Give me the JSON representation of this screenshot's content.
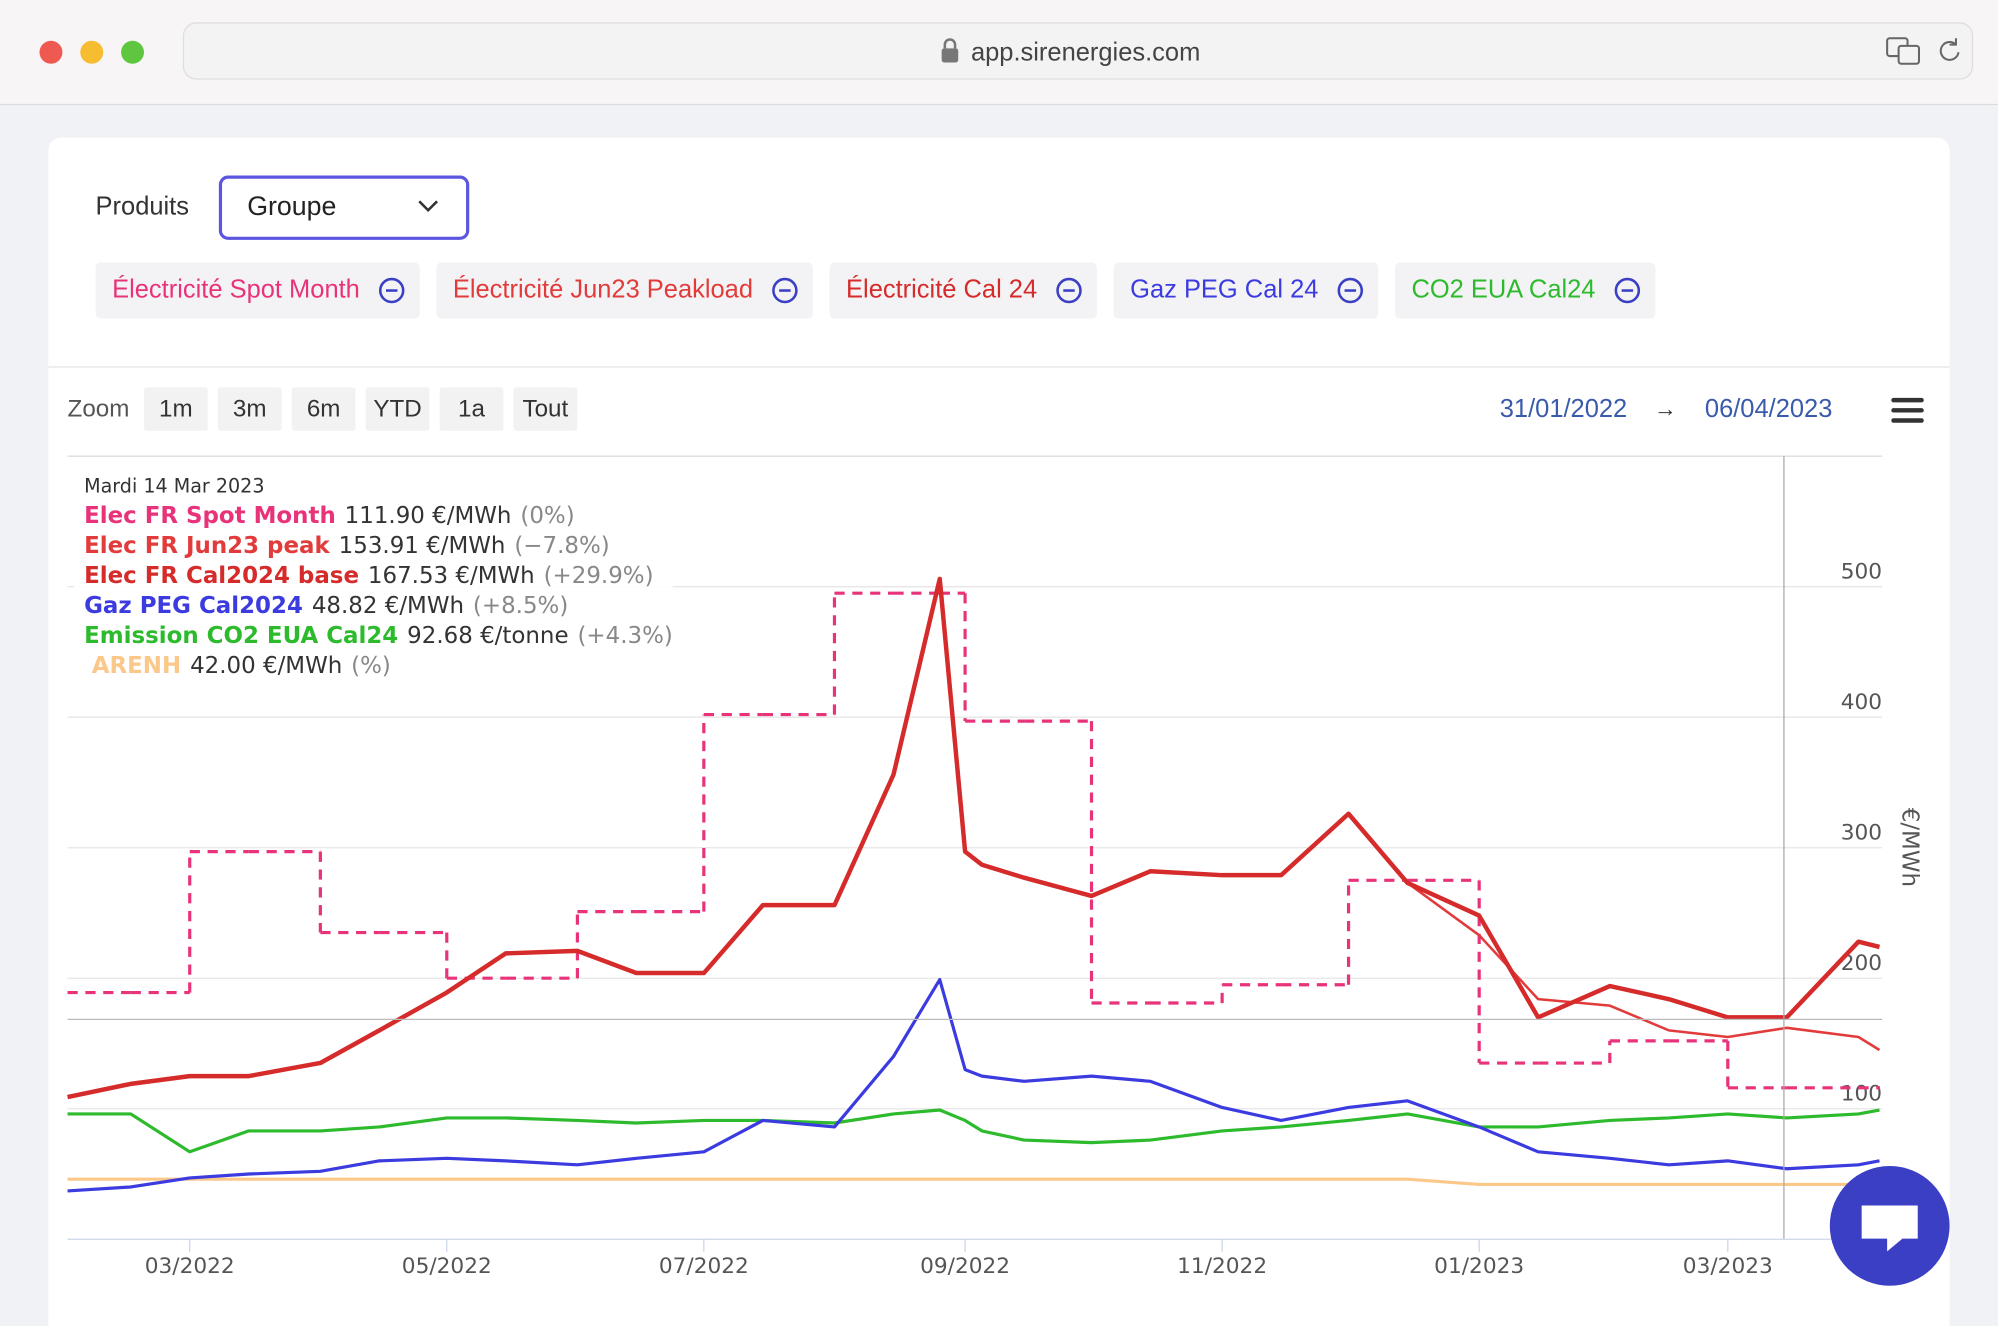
{
  "browser": {
    "url": "app.sirenergies.com"
  },
  "filters": {
    "label": "Produits",
    "select": "Groupe",
    "chips": [
      "Électricité Spot Month",
      "Électricité Jun23 Peakload",
      "Électricité Cal 24",
      "Gaz PEG Cal 24",
      "CO2 EUA Cal24"
    ]
  },
  "zoom": {
    "label": "Zoom",
    "buttons": [
      "1m",
      "3m",
      "6m",
      "YTD",
      "1a",
      "Tout"
    ],
    "from": "31/01/2022",
    "arrow": "→",
    "to": "06/04/2023"
  },
  "tooltip": {
    "date": "Mardi 14 Mar 2023",
    "values": [
      "111.90 €/MWh",
      "153.91 €/MWh",
      "167.53 €/MWh",
      "48.82 €/MWh",
      "92.68 €/tonne",
      "42.00 €/MWh"
    ],
    "changes": [
      "(0%)",
      "(−7.8%)",
      "(+29.9%)",
      "(+8.5%)",
      "(+4.3%)",
      "(%)"
    ]
  },
  "chart_data": {
    "type": "line",
    "y_label": "€/MWh",
    "x": [
      "2022-01-31",
      "2022-02-15",
      "2022-03-01",
      "2022-03-15",
      "2022-04-01",
      "2022-04-15",
      "2022-05-01",
      "2022-05-15",
      "2022-06-01",
      "2022-06-15",
      "2022-07-01",
      "2022-07-15",
      "2022-08-01",
      "2022-08-15",
      "2022-08-26",
      "2022-09-01",
      "2022-09-05",
      "2022-09-15",
      "2022-10-01",
      "2022-10-15",
      "2022-11-01",
      "2022-11-15",
      "2022-12-01",
      "2022-12-15",
      "2023-01-01",
      "2023-01-15",
      "2023-02-01",
      "2023-02-15",
      "2023-03-01",
      "2023-03-15",
      "2023-04-01",
      "2023-04-06"
    ],
    "xlim": [
      "2022-01-31",
      "2023-04-06"
    ],
    "xticks": [
      {
        "value": "2022-03-01",
        "label": "03/2022"
      },
      {
        "value": "2022-05-01",
        "label": "05/2022"
      },
      {
        "value": "2022-07-01",
        "label": "07/2022"
      },
      {
        "value": "2022-09-01",
        "label": "09/2022"
      },
      {
        "value": "2022-11-01",
        "label": "11/2022"
      },
      {
        "value": "2023-01-01",
        "label": "01/2023"
      },
      {
        "value": "2023-03-01",
        "label": "03/2023"
      }
    ],
    "ylim": [
      0,
      600
    ],
    "yticks": [
      100,
      200,
      300,
      400,
      500
    ],
    "grid": true,
    "series": [
      {
        "name": "Elec FR Spot Month",
        "color": "#e8337a",
        "step": true,
        "dashed": true,
        "line_width": 2.5,
        "values": [
          189,
          189,
          297,
          297,
          235,
          235,
          200,
          200,
          251,
          251,
          402,
          402,
          495,
          495,
          495,
          397,
          397,
          397,
          181,
          181,
          195,
          195,
          275,
          275,
          135,
          135,
          152,
          152,
          116,
          116,
          116,
          116
        ]
      },
      {
        "name": "Elec FR Jun23 peak",
        "color": "#e23b3b",
        "line_width": 2,
        "values": [
          null,
          null,
          null,
          null,
          null,
          null,
          null,
          null,
          null,
          null,
          null,
          null,
          null,
          null,
          null,
          null,
          null,
          null,
          null,
          null,
          null,
          null,
          null,
          273,
          233,
          184,
          179,
          160,
          155,
          162,
          155,
          145
        ]
      },
      {
        "name": "Elec FR Cal2024 base",
        "color": "#d62b2b",
        "line_width": 3.5,
        "values": [
          109,
          119,
          125,
          125,
          135,
          160,
          189,
          219,
          221,
          204,
          204,
          256,
          256,
          356,
          506,
          297,
          287,
          277,
          263,
          282,
          279,
          279,
          326,
          273,
          248,
          170,
          194,
          184,
          170,
          170,
          228,
          224
        ]
      },
      {
        "name": "Gaz PEG Cal2024",
        "color": "#3b3be0",
        "line_width": 2.5,
        "values": [
          37,
          40,
          47,
          50,
          52,
          60,
          62,
          60,
          57,
          62,
          67,
          91,
          86,
          140,
          199,
          130,
          125,
          121,
          125,
          121,
          101,
          91,
          101,
          106,
          86,
          67,
          62,
          57,
          60,
          54,
          57,
          60
        ]
      },
      {
        "name": "Emission CO2 EUA Cal24",
        "color": "#2dbb2d",
        "line_width": 2.5,
        "values": [
          96,
          96,
          67,
          83,
          83,
          86,
          93,
          93,
          91,
          89,
          91,
          91,
          89,
          96,
          99,
          91,
          83,
          76,
          74,
          76,
          83,
          86,
          91,
          96,
          86,
          86,
          91,
          93,
          96,
          93,
          96,
          99
        ]
      },
      {
        "name": "ARENH",
        "color": "#fcc88a",
        "line_width": 2.5,
        "values": [
          46,
          46,
          46,
          46,
          46,
          46,
          46,
          46,
          46,
          46,
          46,
          46,
          46,
          46,
          46,
          46,
          46,
          46,
          46,
          46,
          46,
          46,
          46,
          46,
          42,
          42,
          42,
          42,
          42,
          42,
          42,
          42
        ]
      }
    ]
  }
}
